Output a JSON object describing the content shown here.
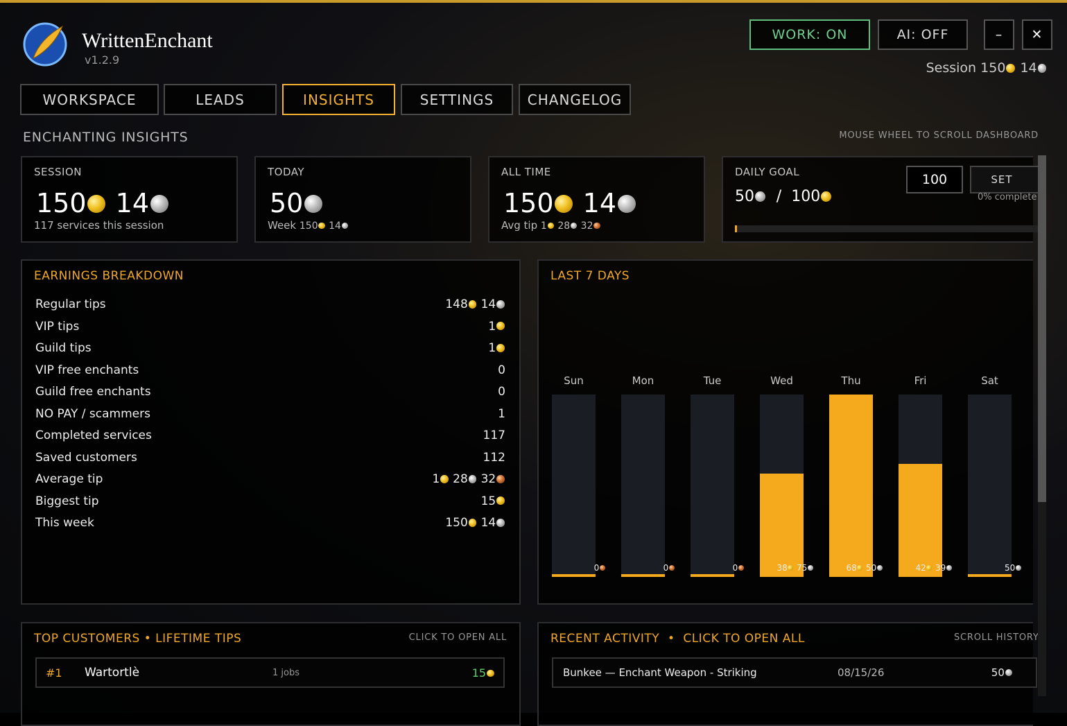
{
  "header": {
    "title": "WrittenEnchant",
    "version": "v1.2.9",
    "work": "WORK: ON",
    "ai": "AI: OFF",
    "minimize": "–",
    "close": "✕",
    "session_label": "Session",
    "session": [
      {
        "n": 150,
        "coin": "gold"
      },
      {
        "n": 14,
        "coin": "silver"
      }
    ]
  },
  "tabs": [
    "WORKSPACE",
    "LEADS",
    "INSIGHTS",
    "SETTINGS",
    "CHANGELOG"
  ],
  "active_tab": "INSIGHTS",
  "section_title": "ENCHANTING INSIGHTS",
  "scroll_hint": "MOUSE WHEEL TO SCROLL DASHBOARD",
  "cards": [
    {
      "label": "SESSION",
      "amount": [
        {
          "n": 150,
          "coin": "gold"
        },
        {
          "n": 14,
          "coin": "silver"
        }
      ],
      "sub_label": "117 services this session",
      "sub_amount": []
    },
    {
      "label": "TODAY",
      "amount": [
        {
          "n": 50,
          "coin": "silver"
        }
      ],
      "sub_label": "Week",
      "sub_amount": [
        {
          "n": 150,
          "coin": "gold"
        },
        {
          "n": 14,
          "coin": "silver"
        }
      ]
    },
    {
      "label": "ALL TIME",
      "amount": [
        {
          "n": 150,
          "coin": "gold"
        },
        {
          "n": 14,
          "coin": "silver"
        }
      ],
      "sub_label": "Avg tip",
      "sub_amount": [
        {
          "n": 1,
          "coin": "gold"
        },
        {
          "n": 28,
          "coin": "silver"
        },
        {
          "n": 32,
          "coin": "copper"
        }
      ]
    }
  ],
  "daily_goal": {
    "label": "DAILY GOAL",
    "current": [
      {
        "n": 50,
        "coin": "silver"
      }
    ],
    "separator": "/",
    "goal": [
      {
        "n": 100,
        "coin": "gold"
      }
    ],
    "input": "100",
    "button": "SET",
    "percent": "0% complete"
  },
  "earnings": {
    "title": "EARNINGS BREAKDOWN",
    "rows": [
      {
        "label": "Regular tips",
        "amount": [
          {
            "n": 148,
            "coin": "gold"
          },
          {
            "n": 14,
            "coin": "silver"
          }
        ]
      },
      {
        "label": "VIP tips",
        "amount": [
          {
            "n": 1,
            "coin": "gold"
          }
        ]
      },
      {
        "label": "Guild tips",
        "amount": [
          {
            "n": 1,
            "coin": "gold"
          }
        ]
      },
      {
        "label": "VIP free enchants",
        "amount": [
          {
            "n": 0
          }
        ]
      },
      {
        "label": "Guild free enchants",
        "amount": [
          {
            "n": 0
          }
        ]
      },
      {
        "label": "NO PAY / scammers",
        "amount": [
          {
            "n": 1
          }
        ]
      },
      {
        "label": "Completed services",
        "amount": [
          {
            "n": 117
          }
        ]
      },
      {
        "label": "Saved customers",
        "amount": [
          {
            "n": 112
          }
        ]
      },
      {
        "label": "Average tip",
        "amount": [
          {
            "n": 1,
            "coin": "gold"
          },
          {
            "n": 28,
            "coin": "silver"
          },
          {
            "n": 32,
            "coin": "copper"
          }
        ]
      },
      {
        "label": "Biggest tip",
        "amount": [
          {
            "n": 15,
            "coin": "gold"
          }
        ]
      },
      {
        "label": "This week",
        "amount": [
          {
            "n": 150,
            "coin": "gold"
          },
          {
            "n": 14,
            "coin": "silver"
          }
        ]
      }
    ]
  },
  "last_7_days": {
    "title": "LAST 7 DAYS",
    "days": [
      {
        "day": "Sun",
        "value": 0,
        "amount": [
          {
            "n": 0,
            "coin": "copper"
          }
        ]
      },
      {
        "day": "Mon",
        "value": 0,
        "amount": [
          {
            "n": 0,
            "coin": "copper"
          }
        ]
      },
      {
        "day": "Tue",
        "value": 0,
        "amount": [
          {
            "n": 0,
            "coin": "copper"
          }
        ]
      },
      {
        "day": "Wed",
        "value": 38.75,
        "amount": [
          {
            "n": 38,
            "coin": "gold"
          },
          {
            "n": 75,
            "coin": "silver"
          }
        ]
      },
      {
        "day": "Thu",
        "value": 68.5,
        "amount": [
          {
            "n": 68,
            "coin": "gold"
          },
          {
            "n": 50,
            "coin": "silver"
          }
        ]
      },
      {
        "day": "Fri",
        "value": 42.39,
        "amount": [
          {
            "n": 42,
            "coin": "gold"
          },
          {
            "n": 39,
            "coin": "silver"
          }
        ]
      },
      {
        "day": "Sat",
        "value": 0.5,
        "amount": [
          {
            "n": 50,
            "coin": "silver"
          }
        ]
      }
    ]
  },
  "top_customers": {
    "title": "TOP CUSTOMERS",
    "separator": "•",
    "subtitle": "LIFETIME TIPS",
    "hint": "CLICK TO OPEN ALL",
    "rows": [
      {
        "rank": "#1",
        "name": "Wartortlè",
        "jobs": "1 jobs",
        "amount": [
          {
            "n": 15,
            "coin": "gold"
          }
        ]
      }
    ]
  },
  "recent_activity": {
    "title": "RECENT ACTIVITY",
    "separator": "•",
    "subtitle": "CLICK TO OPEN ALL",
    "hint": "SCROLL HISTORY",
    "rows": [
      {
        "text": "Bunkee — Enchant Weapon - Striking",
        "date": "08/15/26",
        "amount": [
          {
            "n": 50,
            "coin": "silver"
          }
        ]
      }
    ]
  }
}
